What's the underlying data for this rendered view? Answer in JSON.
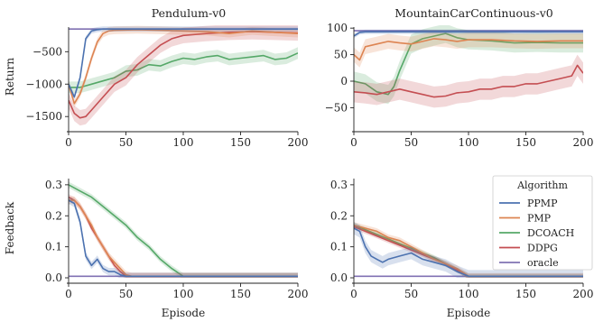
{
  "colors": {
    "PPMP": "#4c72b0",
    "PMP": "#dd8452",
    "DCOACH": "#55a868",
    "DDPG": "#c44e52",
    "oracle": "#8172b3"
  },
  "legend": {
    "title": "Algorithm",
    "placement": "right",
    "entries": [
      "PPMP",
      "PMP",
      "DCOACH",
      "DDPG",
      "oracle"
    ]
  },
  "chart_data": [
    {
      "type": "line",
      "title": "Pendulum-v0",
      "xlabel": "",
      "ylabel": "Return",
      "xlim": [
        0,
        200
      ],
      "ylim": [
        -1650,
        -120
      ],
      "xticks": [
        0,
        50,
        100,
        150,
        200
      ],
      "yticks": [
        -500,
        -1000,
        -1500
      ],
      "ytick_labels": [
        "−500",
        "−1000",
        "−1500"
      ],
      "series": [
        {
          "name": "PPMP",
          "x": [
            0,
            5,
            10,
            15,
            20,
            25,
            30,
            40,
            60,
            80,
            100,
            120,
            140,
            160,
            180,
            200
          ],
          "y": [
            -1000,
            -1200,
            -900,
            -300,
            -180,
            -160,
            -150,
            -150,
            -150,
            -150,
            -150,
            -150,
            -150,
            -150,
            -150,
            -150
          ],
          "band": 40
        },
        {
          "name": "PMP",
          "x": [
            0,
            5,
            10,
            15,
            20,
            25,
            30,
            35,
            40,
            60,
            80,
            100,
            120,
            140,
            160,
            180,
            200
          ],
          "y": [
            -1000,
            -1300,
            -1150,
            -900,
            -600,
            -350,
            -220,
            -180,
            -170,
            -160,
            -170,
            -180,
            -190,
            -220,
            -180,
            -200,
            -220
          ],
          "band": 60
        },
        {
          "name": "DCOACH",
          "x": [
            0,
            10,
            20,
            30,
            40,
            50,
            60,
            70,
            80,
            90,
            100,
            110,
            120,
            130,
            140,
            150,
            160,
            170,
            180,
            190,
            200
          ],
          "y": [
            -1050,
            -1050,
            -1000,
            -950,
            -900,
            -800,
            -780,
            -700,
            -720,
            -650,
            -600,
            -620,
            -580,
            -560,
            -620,
            -600,
            -580,
            -560,
            -620,
            -600,
            -520
          ],
          "band": 90
        },
        {
          "name": "DDPG",
          "x": [
            0,
            5,
            10,
            15,
            20,
            30,
            40,
            50,
            60,
            70,
            80,
            90,
            100,
            120,
            140,
            160,
            180,
            200
          ],
          "y": [
            -1250,
            -1450,
            -1520,
            -1500,
            -1400,
            -1200,
            -1000,
            -900,
            -700,
            -550,
            -400,
            -300,
            -250,
            -220,
            -200,
            -190,
            -200,
            -210
          ],
          "band": 120
        },
        {
          "name": "oracle",
          "x": [
            0,
            200
          ],
          "y": [
            -150,
            -150
          ],
          "band": 10
        }
      ]
    },
    {
      "type": "line",
      "title": "MountainCarContinuous-v0",
      "xlabel": "",
      "ylabel": "",
      "xlim": [
        0,
        200
      ],
      "ylim": [
        -85,
        102
      ],
      "xticks": [
        0,
        50,
        100,
        150,
        200
      ],
      "yticks": [
        100,
        50,
        0,
        -50
      ],
      "ytick_labels": [
        "100",
        "50",
        "0",
        "−50"
      ],
      "series": [
        {
          "name": "PPMP",
          "x": [
            0,
            5,
            10,
            20,
            40,
            60,
            80,
            100,
            120,
            140,
            160,
            180,
            200
          ],
          "y": [
            85,
            92,
            93,
            93,
            93,
            93,
            93,
            93,
            93,
            93,
            93,
            93,
            93
          ],
          "band": 4
        },
        {
          "name": "PMP",
          "x": [
            0,
            5,
            10,
            20,
            30,
            40,
            50,
            60,
            70,
            80,
            90,
            100,
            120,
            140,
            160,
            180,
            200
          ],
          "y": [
            50,
            40,
            65,
            70,
            75,
            72,
            70,
            75,
            80,
            78,
            75,
            78,
            78,
            76,
            75,
            76,
            76
          ],
          "band": 14
        },
        {
          "name": "DCOACH",
          "x": [
            0,
            10,
            20,
            30,
            35,
            40,
            50,
            60,
            70,
            80,
            90,
            100,
            120,
            140,
            160,
            180,
            200
          ],
          "y": [
            0,
            -5,
            -20,
            -25,
            -10,
            20,
            70,
            80,
            85,
            90,
            82,
            78,
            76,
            72,
            73,
            72,
            72
          ],
          "band": 18
        },
        {
          "name": "DDPG",
          "x": [
            0,
            10,
            20,
            30,
            40,
            50,
            60,
            70,
            80,
            90,
            100,
            110,
            120,
            130,
            140,
            150,
            160,
            170,
            180,
            190,
            195,
            200
          ],
          "y": [
            -20,
            -22,
            -25,
            -20,
            -15,
            -20,
            -25,
            -30,
            -28,
            -22,
            -20,
            -15,
            -15,
            -10,
            -10,
            -5,
            -5,
            0,
            5,
            10,
            30,
            15
          ],
          "band": 20
        },
        {
          "name": "oracle",
          "x": [
            0,
            200
          ],
          "y": [
            95,
            95
          ],
          "band": 1.5
        }
      ]
    },
    {
      "type": "line",
      "title": "",
      "xlabel": "Episode",
      "ylabel": "Feedback",
      "xlim": [
        0,
        200
      ],
      "ylim": [
        0,
        0.32
      ],
      "xticks": [
        0,
        50,
        100,
        150,
        200
      ],
      "yticks": [
        0.0,
        0.1,
        0.2,
        0.3
      ],
      "ytick_labels": [
        "0.0",
        "0.1",
        "0.2",
        "0.3"
      ],
      "series": [
        {
          "name": "PPMP",
          "x": [
            0,
            5,
            10,
            15,
            20,
            25,
            30,
            35,
            40,
            45,
            50,
            60,
            200
          ],
          "y": [
            0.25,
            0.24,
            0.18,
            0.07,
            0.04,
            0.06,
            0.03,
            0.02,
            0.02,
            0.01,
            0.005,
            0.005,
            0.005
          ],
          "band": 0.012
        },
        {
          "name": "PMP",
          "x": [
            0,
            5,
            10,
            15,
            20,
            25,
            30,
            35,
            40,
            45,
            50,
            55,
            200
          ],
          "y": [
            0.25,
            0.25,
            0.23,
            0.2,
            0.17,
            0.13,
            0.1,
            0.07,
            0.05,
            0.03,
            0.01,
            0.005,
            0.005
          ],
          "band": 0.012
        },
        {
          "name": "DCOACH",
          "x": [
            0,
            10,
            20,
            30,
            40,
            50,
            60,
            70,
            80,
            90,
            100,
            110,
            200
          ],
          "y": [
            0.3,
            0.28,
            0.26,
            0.23,
            0.2,
            0.17,
            0.13,
            0.1,
            0.06,
            0.03,
            0.005,
            0.005,
            0.005
          ],
          "band": 0.01
        },
        {
          "name": "DDPG",
          "x": [
            0,
            5,
            10,
            15,
            20,
            25,
            30,
            35,
            40,
            45,
            50,
            55,
            200
          ],
          "y": [
            0.26,
            0.25,
            0.23,
            0.2,
            0.16,
            0.13,
            0.1,
            0.07,
            0.04,
            0.02,
            0.005,
            0.005,
            0.005
          ],
          "band": 0.01
        },
        {
          "name": "oracle",
          "x": [
            0,
            200
          ],
          "y": [
            0.005,
            0.005
          ],
          "band": 0.001
        }
      ]
    },
    {
      "type": "line",
      "title": "",
      "xlabel": "Episode",
      "ylabel": "",
      "xlim": [
        0,
        200
      ],
      "ylim": [
        0,
        0.32
      ],
      "xticks": [
        0,
        50,
        100,
        150,
        200
      ],
      "yticks": [
        0.0,
        0.1,
        0.2,
        0.3
      ],
      "ytick_labels": [
        "0.0",
        "0.1",
        "0.2",
        "0.3"
      ],
      "series": [
        {
          "name": "PPMP",
          "x": [
            0,
            5,
            10,
            15,
            20,
            25,
            30,
            40,
            50,
            60,
            70,
            80,
            90,
            100,
            110,
            200
          ],
          "y": [
            0.16,
            0.15,
            0.1,
            0.07,
            0.06,
            0.05,
            0.06,
            0.07,
            0.08,
            0.06,
            0.05,
            0.04,
            0.02,
            0.005,
            0.005,
            0.005
          ],
          "band": 0.02
        },
        {
          "name": "PMP",
          "x": [
            0,
            10,
            20,
            30,
            40,
            50,
            60,
            70,
            80,
            90,
            100,
            110,
            200
          ],
          "y": [
            0.17,
            0.16,
            0.15,
            0.13,
            0.12,
            0.1,
            0.08,
            0.06,
            0.045,
            0.03,
            0.005,
            0.005,
            0.005
          ],
          "band": 0.01
        },
        {
          "name": "DCOACH",
          "x": [
            0,
            10,
            20,
            30,
            40,
            50,
            60,
            70,
            80,
            90,
            100,
            110,
            200
          ],
          "y": [
            0.17,
            0.155,
            0.14,
            0.125,
            0.11,
            0.095,
            0.08,
            0.065,
            0.045,
            0.025,
            0.005,
            0.005,
            0.005
          ],
          "band": 0.008
        },
        {
          "name": "DDPG",
          "x": [
            0,
            10,
            20,
            30,
            40,
            50,
            60,
            70,
            80,
            90,
            100,
            110,
            200
          ],
          "y": [
            0.165,
            0.15,
            0.135,
            0.12,
            0.105,
            0.09,
            0.075,
            0.06,
            0.045,
            0.025,
            0.005,
            0.005,
            0.005
          ],
          "band": 0.008
        },
        {
          "name": "oracle",
          "x": [
            0,
            200
          ],
          "y": [
            0.005,
            0.005
          ],
          "band": 0.001
        }
      ]
    }
  ]
}
